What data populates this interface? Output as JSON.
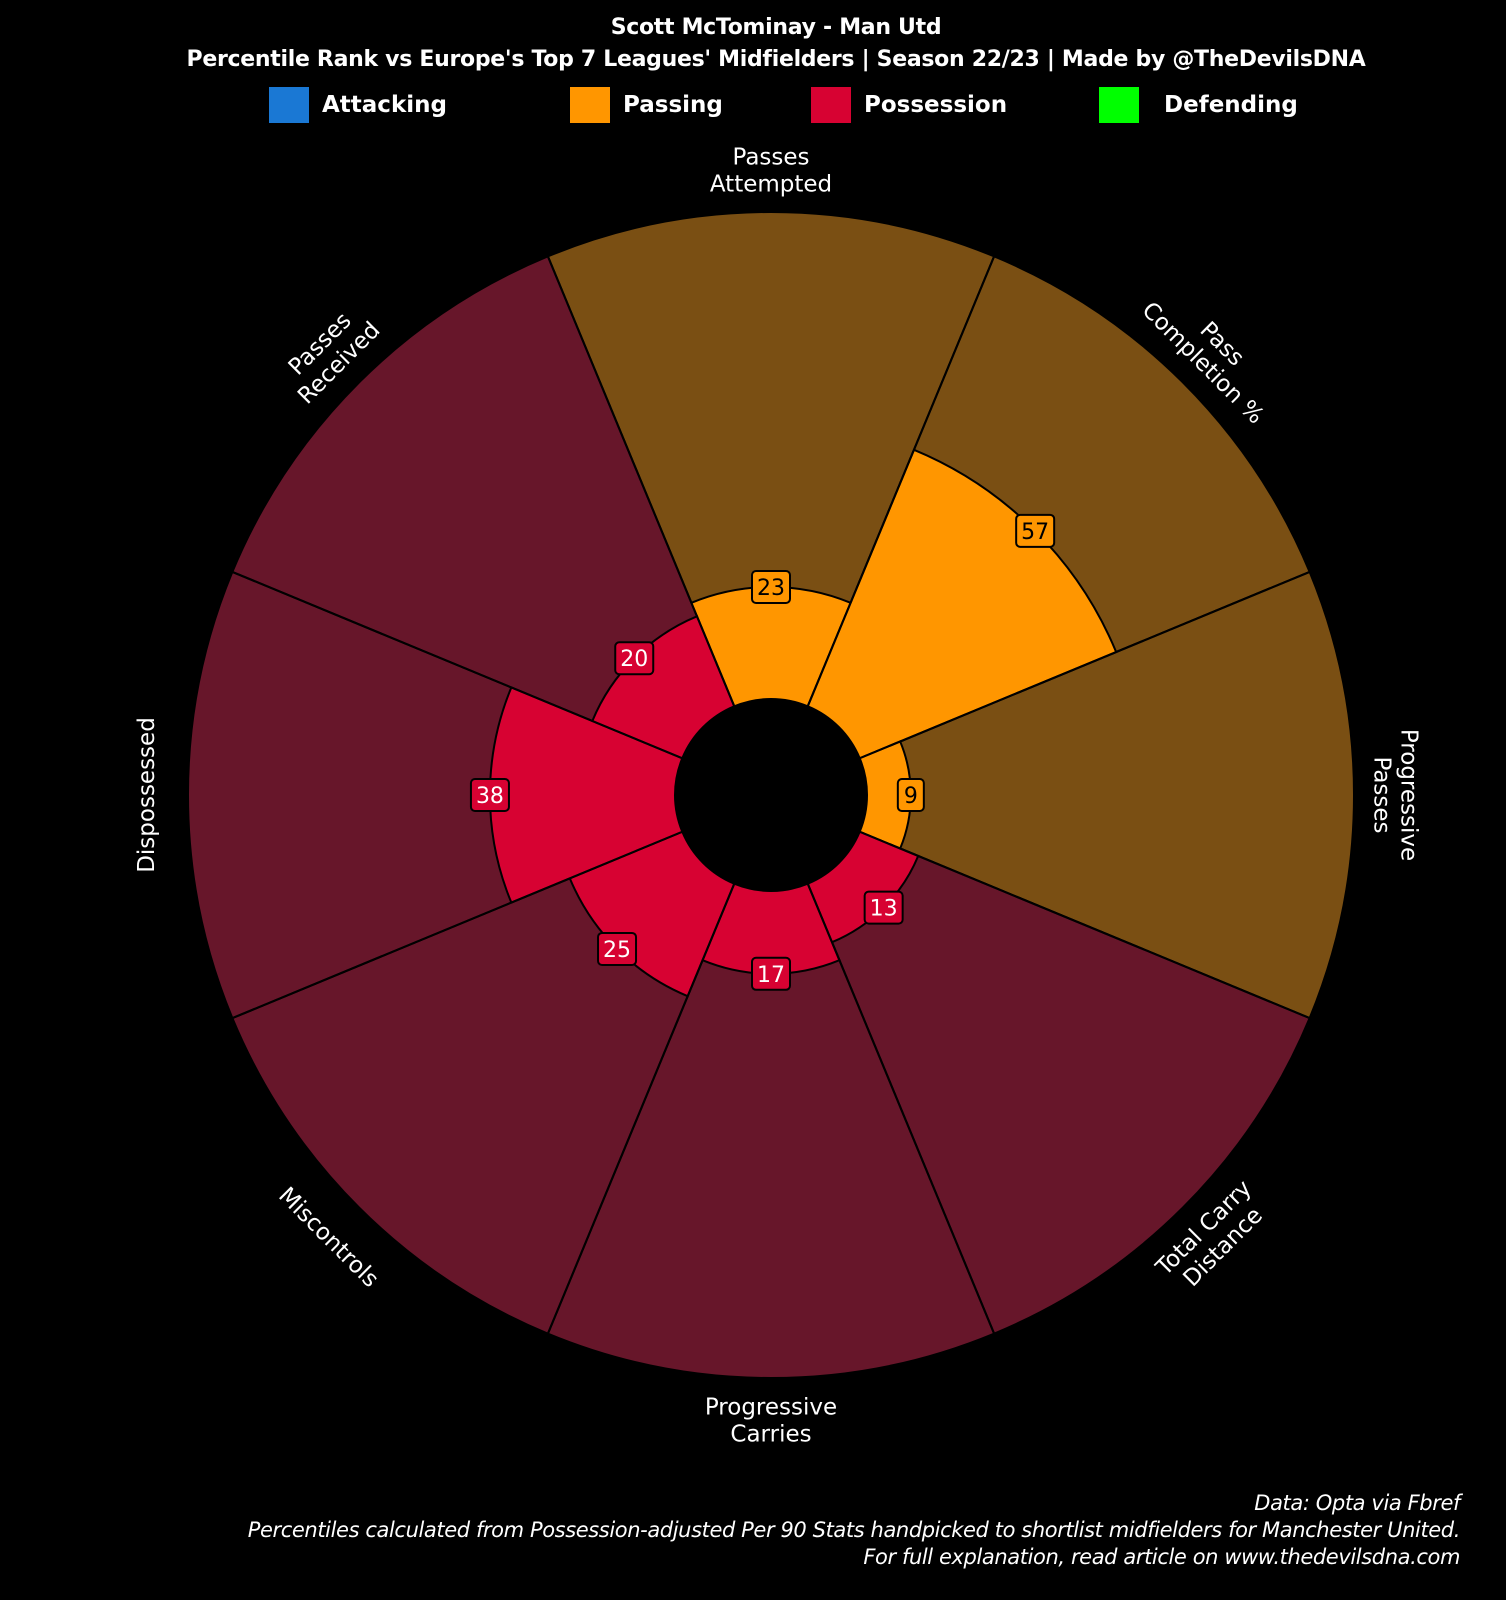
{
  "title": "Scott McTominay - Man Utd",
  "subtitle": "Percentile Rank vs Europe's Top 7 Leagues' Midfielders | Season 22/23 | Made by @TheDevilsDNA",
  "legend": [
    {
      "label": "Attacking",
      "color": "#1a78d4"
    },
    {
      "label": "Passing",
      "color": "#ff9600"
    },
    {
      "label": "Possession",
      "color": "#d70232"
    },
    {
      "label": "Defending",
      "color": "#00ff00"
    }
  ],
  "footer": {
    "line1": "Data: Opta via Fbref",
    "line2": "Percentiles calculated from Possession-adjusted Per 90 Stats handpicked to shortlist midfielders for Manchester United.",
    "line3": "For full explanation, read article on www.thedevilsdna.com"
  },
  "chart_data": {
    "type": "pizza",
    "range": [
      0,
      100
    ],
    "slices": [
      {
        "label": "Passes\nAttempted",
        "value": 23,
        "category": "Passing"
      },
      {
        "label": "Pass\nCompletion %",
        "value": 57,
        "category": "Passing"
      },
      {
        "label": "Progressive\nPasses",
        "value": 9,
        "category": "Passing"
      },
      {
        "label": "Total Carry\nDistance",
        "value": 13,
        "category": "Possession"
      },
      {
        "label": "Progressive\nCarries",
        "value": 17,
        "category": "Possession"
      },
      {
        "label": "Miscontrols",
        "value": 25,
        "category": "Possession"
      },
      {
        "label": "Dispossessed",
        "value": 38,
        "category": "Possession"
      },
      {
        "label": "Passes\nReceived",
        "value": 20,
        "category": "Possession"
      }
    ],
    "colors": {
      "Passing": {
        "fill": "#ff9600",
        "background": "#7a4f13",
        "label_text": "#000000"
      },
      "Possession": {
        "fill": "#d70232",
        "background": "#67162a",
        "label_text": "#ffffff"
      }
    }
  }
}
